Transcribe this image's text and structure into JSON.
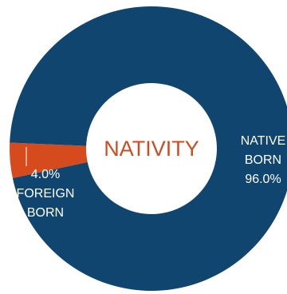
{
  "chart_data": {
    "type": "pie",
    "center_label": "NATIVITY",
    "slices": [
      {
        "category": "NATIVE BORN",
        "value": 96.0,
        "label_lines": [
          "NATIVE",
          "BORN",
          "96.0%"
        ],
        "color": "#0f456e"
      },
      {
        "category": "FOREIGN BORN",
        "value": 4.0,
        "label_lines": [
          "4.0%",
          "FOREIGN",
          "BORN"
        ],
        "color": "#d54b1d"
      }
    ],
    "donut": true,
    "legend": "none"
  }
}
